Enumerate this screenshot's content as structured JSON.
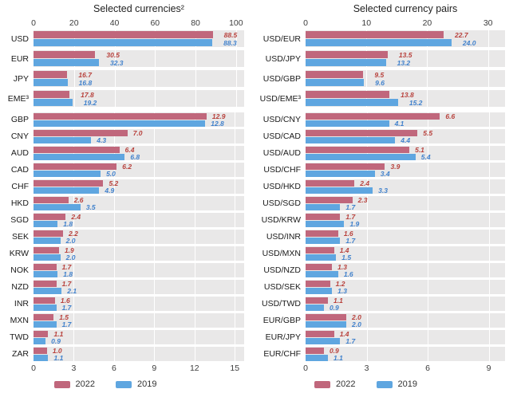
{
  "colors": {
    "bar_2022": "#c0677c",
    "bar_2019": "#5fa6e0",
    "value_label_2022": "#b8413c",
    "value_label_2019": "#4081cc",
    "plot_background": "#e9e8e8",
    "gridline": "#ffffff"
  },
  "legend": {
    "items": [
      {
        "label": "2022",
        "color": "#c0677c"
      },
      {
        "label": "2019",
        "color": "#5fa6e0"
      }
    ]
  },
  "chart_data": [
    {
      "type": "bar",
      "orientation": "horizontal",
      "title": "Selected currencies²",
      "axis_position": "top",
      "axis_ticks": [
        0,
        20,
        40,
        60,
        80,
        100
      ],
      "axis_max": 104,
      "show_legend": false,
      "categories": [
        "USD",
        "EUR",
        "JPY",
        "EME³"
      ],
      "series": [
        {
          "name": "2022",
          "values": [
            "88.5",
            "30.5",
            "16.7",
            "17.8"
          ]
        },
        {
          "name": "2019",
          "values": [
            "88.3",
            "32.3",
            "16.8",
            "19.2"
          ]
        }
      ]
    },
    {
      "type": "bar",
      "orientation": "horizontal",
      "title": "Selected currency pairs",
      "axis_position": "top",
      "axis_ticks": [
        0,
        10,
        20,
        30
      ],
      "axis_max": 32.8,
      "show_legend": false,
      "categories": [
        "USD/EUR",
        "USD/JPY",
        "USD/GBP",
        "USD/EME³"
      ],
      "series": [
        {
          "name": "2022",
          "values": [
            "22.7",
            "13.5",
            "9.5",
            "13.8"
          ]
        },
        {
          "name": "2019",
          "values": [
            "24.0",
            "13.2",
            "9.6",
            "15.2"
          ]
        }
      ]
    },
    {
      "type": "bar",
      "orientation": "horizontal",
      "title": "",
      "axis_position": "bottom",
      "axis_ticks": [
        0,
        3,
        6,
        9,
        12,
        15
      ],
      "axis_max": 15.7,
      "show_legend": true,
      "categories": [
        "GBP",
        "CNY",
        "AUD",
        "CAD",
        "CHF",
        "HKD",
        "SGD",
        "SEK",
        "KRW",
        "NOK",
        "NZD",
        "INR",
        "MXN",
        "TWD",
        "ZAR"
      ],
      "series": [
        {
          "name": "2022",
          "values": [
            "12.9",
            "7.0",
            "6.4",
            "6.2",
            "5.2",
            "2.6",
            "2.4",
            "2.2",
            "1.9",
            "1.7",
            "1.7",
            "1.6",
            "1.5",
            "1.1",
            "1.0"
          ]
        },
        {
          "name": "2019",
          "values": [
            "12.8",
            "4.3",
            "6.8",
            "5.0",
            "4.9",
            "3.5",
            "1.8",
            "2.0",
            "2.0",
            "1.8",
            "2.1",
            "1.7",
            "1.7",
            "0.9",
            "1.1"
          ]
        }
      ]
    },
    {
      "type": "bar",
      "orientation": "horizontal",
      "title": "",
      "axis_position": "bottom",
      "axis_ticks": [
        0,
        3,
        6,
        9
      ],
      "axis_max": 9.8,
      "show_legend": true,
      "categories": [
        "USD/CNY",
        "USD/CAD",
        "USD/AUD",
        "USD/CHF",
        "USD/HKD",
        "USD/SGD",
        "USD/KRW",
        "USD/INR",
        "USD/MXN",
        "USD/NZD",
        "USD/SEK",
        "USD/TWD",
        "EUR/GBP",
        "EUR/JPY",
        "EUR/CHF"
      ],
      "series": [
        {
          "name": "2022",
          "values": [
            "6.6",
            "5.5",
            "5.1",
            "3.9",
            "2.4",
            "2.3",
            "1.7",
            "1.6",
            "1.4",
            "1.3",
            "1.2",
            "1.1",
            "2.0",
            "1.4",
            "0.9"
          ]
        },
        {
          "name": "2019",
          "values": [
            "4.1",
            "4.4",
            "5.4",
            "3.4",
            "3.3",
            "1.7",
            "1.9",
            "1.7",
            "1.5",
            "1.6",
            "1.3",
            "0.9",
            "2.0",
            "1.7",
            "1.1"
          ]
        }
      ]
    }
  ]
}
